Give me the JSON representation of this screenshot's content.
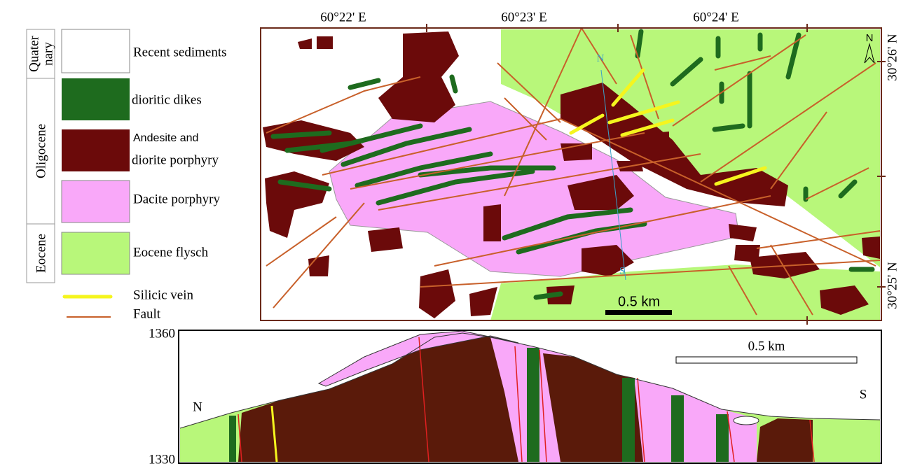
{
  "legend": {
    "epochs": [
      [
        "Quater",
        "nary"
      ],
      "Oligocene",
      "Eocene"
    ],
    "items": [
      "Recent sediments",
      "dioritic dikes",
      [
        "Andesite and",
        "diorite porphyry"
      ],
      "Dacite porphyry",
      "Eocene flysch",
      "Silicic vein",
      "Fault"
    ]
  },
  "map": {
    "longitude_labels": [
      "60°22' E",
      "60°23' E",
      "60°24' E"
    ],
    "latitude_labels": [
      "30°26' N",
      "30°25' N"
    ],
    "north_arrow": "N",
    "profile_start": "N",
    "profile_end": "S",
    "scale": "0.5 km"
  },
  "section": {
    "elevation_labels": [
      "1360",
      "1330"
    ],
    "start": "N",
    "end": "S",
    "scale": "0.5 km"
  }
}
